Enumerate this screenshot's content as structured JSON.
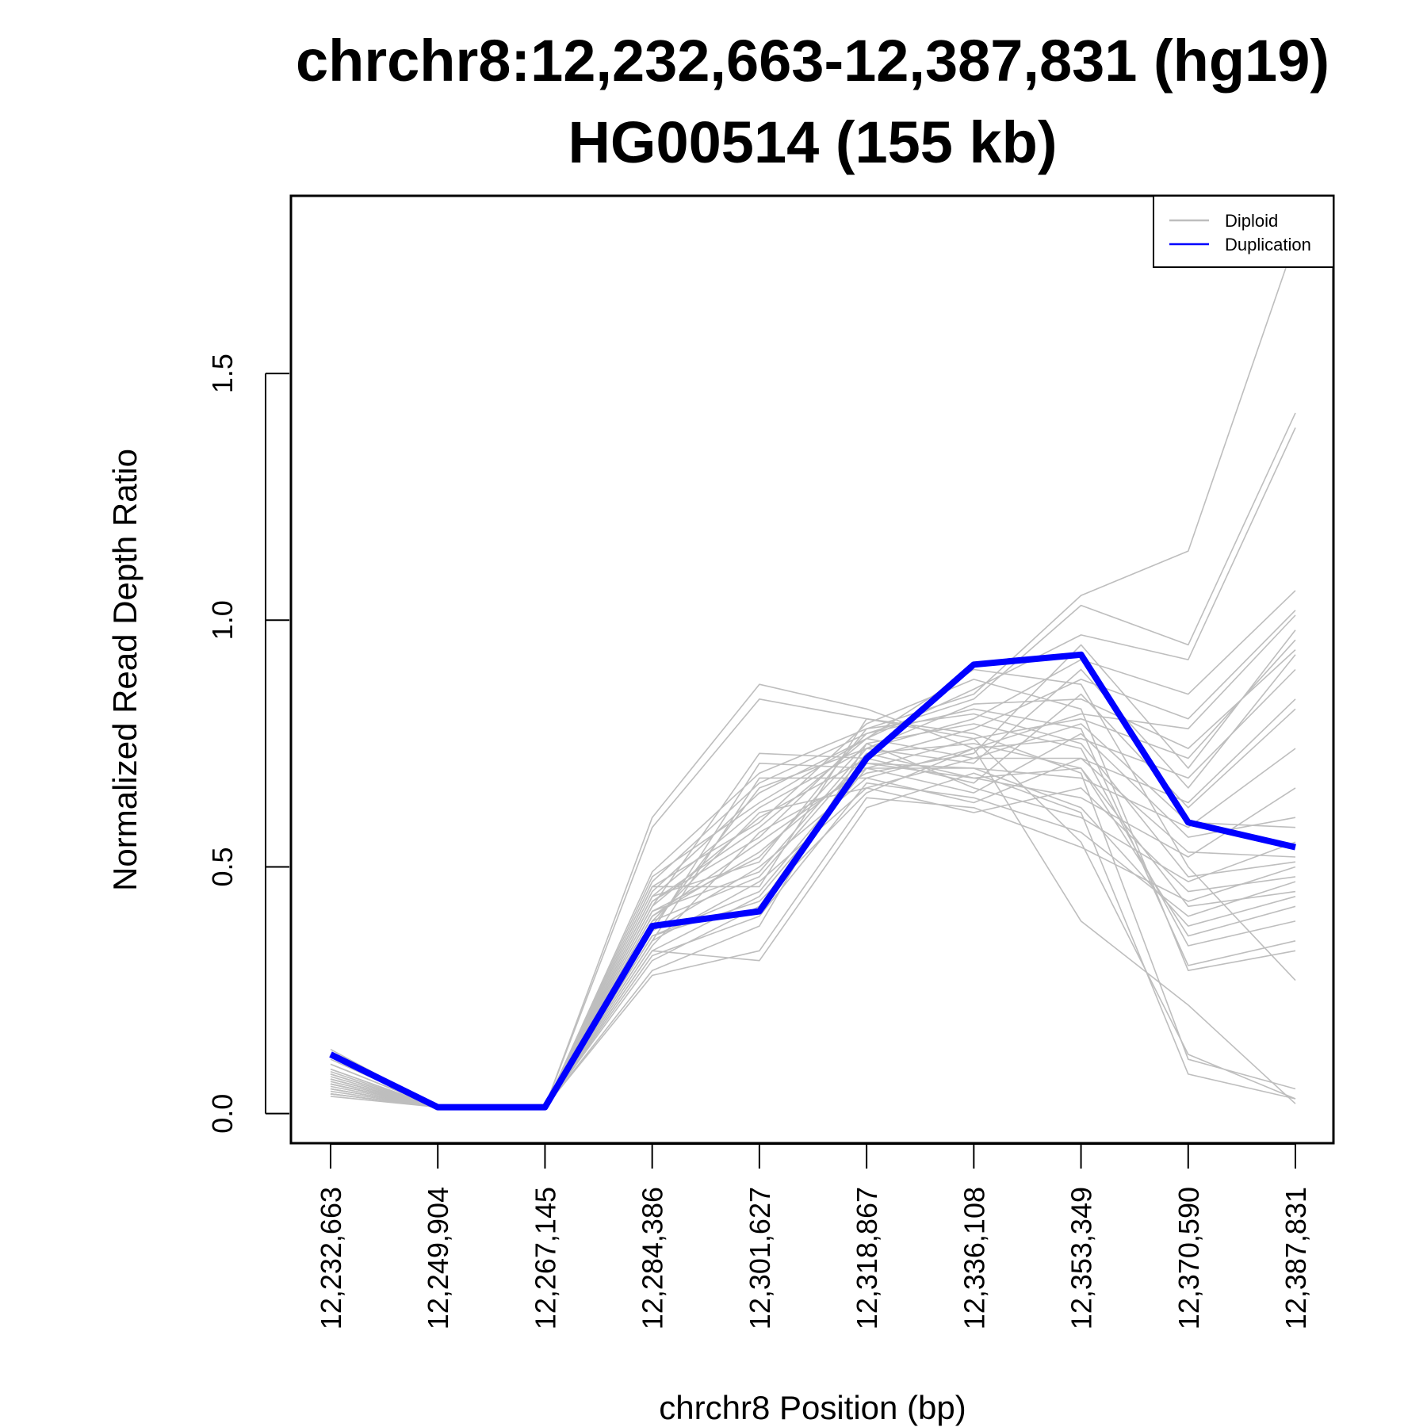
{
  "chart_data": {
    "type": "line",
    "title_line1": "chrchr8:12,232,663-12,387,831 (hg19)",
    "title_line2": "HG00514 (155 kb)",
    "xlabel": "chrchr8 Position (bp)",
    "ylabel": "Normalized Read Depth Ratio",
    "x_ticks": [
      "12,232,663",
      "12,249,904",
      "12,267,145",
      "12,284,386",
      "12,301,627",
      "12,318,867",
      "12,336,108",
      "12,353,349",
      "12,370,590",
      "12,387,831"
    ],
    "y_ticks": [
      "0.0",
      "0.5",
      "1.0",
      "1.5"
    ],
    "y_tick_values": [
      0.0,
      0.5,
      1.0,
      1.5
    ],
    "ylim": [
      -0.06,
      1.86
    ],
    "grid": false,
    "legend_position": "top-right",
    "legend": [
      {
        "label": "Diploid",
        "color": "#bebebe"
      },
      {
        "label": "Duplication",
        "color": "#0000ff"
      }
    ],
    "colors": {
      "diploid": "#bebebe",
      "duplication": "#0000ff",
      "axis": "#000000"
    },
    "series": [
      {
        "name": "Duplication",
        "color": "#0000ff",
        "values": [
          0.12,
          0.013,
          0.013,
          0.38,
          0.41,
          0.72,
          0.91,
          0.93,
          0.59,
          0.54
        ]
      },
      {
        "name": "Diploid",
        "color": "#bebebe",
        "values": [
          0.13,
          0.013,
          0.013,
          0.6,
          0.87,
          0.82,
          0.74,
          0.39,
          0.22,
          0.02
        ]
      },
      {
        "name": "Diploid",
        "color": "#bebebe",
        "values": [
          0.1,
          0.013,
          0.013,
          0.58,
          0.84,
          0.8,
          0.76,
          0.55,
          0.12,
          0.03
        ]
      },
      {
        "name": "Diploid",
        "color": "#bebebe",
        "values": [
          0.09,
          0.013,
          0.013,
          0.49,
          0.69,
          0.78,
          0.85,
          1.05,
          1.14,
          1.77
        ]
      },
      {
        "name": "Diploid",
        "color": "#bebebe",
        "values": [
          0.08,
          0.013,
          0.013,
          0.47,
          0.67,
          0.77,
          0.84,
          1.03,
          0.95,
          1.42
        ]
      },
      {
        "name": "Diploid",
        "color": "#bebebe",
        "values": [
          0.07,
          0.013,
          0.013,
          0.45,
          0.65,
          0.76,
          0.86,
          0.97,
          0.92,
          1.39
        ]
      },
      {
        "name": "Diploid",
        "color": "#bebebe",
        "values": [
          0.06,
          0.013,
          0.013,
          0.44,
          0.62,
          0.74,
          0.8,
          0.92,
          0.85,
          1.06
        ]
      },
      {
        "name": "Diploid",
        "color": "#bebebe",
        "values": [
          0.05,
          0.013,
          0.013,
          0.42,
          0.6,
          0.72,
          0.78,
          0.88,
          0.8,
          1.02
        ]
      },
      {
        "name": "Diploid",
        "color": "#bebebe",
        "values": [
          0.04,
          0.013,
          0.013,
          0.4,
          0.55,
          0.7,
          0.76,
          0.8,
          0.72,
          0.96
        ]
      },
      {
        "name": "Diploid",
        "color": "#bebebe",
        "values": [
          0.035,
          0.013,
          0.013,
          0.37,
          0.5,
          0.68,
          0.74,
          0.76,
          0.68,
          0.9
        ]
      },
      {
        "name": "Diploid",
        "color": "#bebebe",
        "values": [
          0.05,
          0.013,
          0.013,
          0.35,
          0.47,
          0.66,
          0.72,
          0.72,
          0.63,
          0.84
        ]
      },
      {
        "name": "Diploid",
        "color": "#bebebe",
        "values": [
          0.06,
          0.013,
          0.013,
          0.33,
          0.44,
          0.7,
          0.7,
          0.68,
          0.58,
          0.74
        ]
      },
      {
        "name": "Diploid",
        "color": "#bebebe",
        "values": [
          0.07,
          0.013,
          0.013,
          0.31,
          0.42,
          0.73,
          0.68,
          0.64,
          0.52,
          0.66
        ]
      },
      {
        "name": "Diploid",
        "color": "#bebebe",
        "values": [
          0.08,
          0.013,
          0.013,
          0.29,
          0.38,
          0.75,
          0.66,
          0.6,
          0.47,
          0.55
        ]
      },
      {
        "name": "Diploid",
        "color": "#bebebe",
        "values": [
          0.05,
          0.013,
          0.013,
          0.28,
          0.33,
          0.64,
          0.62,
          0.54,
          0.43,
          0.5
        ]
      },
      {
        "name": "Diploid",
        "color": "#bebebe",
        "values": [
          0.04,
          0.013,
          0.013,
          0.32,
          0.4,
          0.67,
          0.64,
          0.57,
          0.4,
          0.47
        ]
      },
      {
        "name": "Diploid",
        "color": "#bebebe",
        "values": [
          0.06,
          0.013,
          0.013,
          0.36,
          0.45,
          0.71,
          0.7,
          0.62,
          0.38,
          0.44
        ]
      },
      {
        "name": "Diploid",
        "color": "#bebebe",
        "values": [
          0.045,
          0.013,
          0.013,
          0.39,
          0.48,
          0.73,
          0.75,
          0.7,
          0.36,
          0.42
        ]
      },
      {
        "name": "Diploid",
        "color": "#bebebe",
        "values": [
          0.055,
          0.013,
          0.013,
          0.41,
          0.52,
          0.75,
          0.79,
          0.74,
          0.34,
          0.39
        ]
      },
      {
        "name": "Diploid",
        "color": "#bebebe",
        "values": [
          0.065,
          0.013,
          0.013,
          0.43,
          0.56,
          0.77,
          0.82,
          0.78,
          0.3,
          0.35
        ]
      },
      {
        "name": "Diploid",
        "color": "#bebebe",
        "values": [
          0.075,
          0.013,
          0.013,
          0.46,
          0.59,
          0.79,
          0.88,
          0.82,
          0.29,
          0.33
        ]
      },
      {
        "name": "Diploid",
        "color": "#bebebe",
        "values": [
          0.085,
          0.013,
          0.013,
          0.48,
          0.63,
          0.76,
          0.9,
          0.87,
          0.5,
          0.27
        ]
      },
      {
        "name": "Diploid",
        "color": "#bebebe",
        "values": [
          0.04,
          0.013,
          0.013,
          0.34,
          0.57,
          0.69,
          0.73,
          0.95,
          0.7,
          0.98
        ]
      },
      {
        "name": "Diploid",
        "color": "#bebebe",
        "values": [
          0.05,
          0.013,
          0.013,
          0.38,
          0.66,
          0.74,
          0.71,
          0.9,
          0.66,
          0.93
        ]
      },
      {
        "name": "Diploid",
        "color": "#bebebe",
        "values": [
          0.06,
          0.013,
          0.013,
          0.42,
          0.73,
          0.72,
          0.67,
          0.85,
          0.62,
          0.82
        ]
      },
      {
        "name": "Diploid",
        "color": "#bebebe",
        "values": [
          0.07,
          0.013,
          0.013,
          0.37,
          0.71,
          0.7,
          0.65,
          0.77,
          0.56,
          0.6
        ]
      },
      {
        "name": "Diploid",
        "color": "#bebebe",
        "values": [
          0.08,
          0.013,
          0.013,
          0.35,
          0.68,
          0.68,
          0.63,
          0.72,
          0.53,
          0.52
        ]
      },
      {
        "name": "Diploid",
        "color": "#bebebe",
        "values": [
          0.09,
          0.013,
          0.013,
          0.39,
          0.61,
          0.66,
          0.61,
          0.66,
          0.45,
          0.48
        ]
      },
      {
        "name": "Diploid",
        "color": "#bebebe",
        "values": [
          0.1,
          0.013,
          0.013,
          0.4,
          0.53,
          0.71,
          0.68,
          0.7,
          0.42,
          0.45
        ]
      },
      {
        "name": "Diploid",
        "color": "#bebebe",
        "values": [
          0.11,
          0.013,
          0.013,
          0.44,
          0.51,
          0.78,
          0.81,
          0.75,
          0.48,
          0.51
        ]
      },
      {
        "name": "Diploid",
        "color": "#bebebe",
        "values": [
          0.12,
          0.013,
          0.013,
          0.46,
          0.46,
          0.8,
          0.77,
          0.69,
          0.11,
          0.05
        ]
      },
      {
        "name": "Diploid",
        "color": "#bebebe",
        "values": [
          0.04,
          0.013,
          0.013,
          0.33,
          0.31,
          0.62,
          0.69,
          0.61,
          0.08,
          0.03
        ]
      },
      {
        "name": "Diploid",
        "color": "#bebebe",
        "values": [
          0.06,
          0.013,
          0.013,
          0.36,
          0.43,
          0.65,
          0.74,
          0.81,
          0.78,
          1.01
        ]
      },
      {
        "name": "Diploid",
        "color": "#bebebe",
        "values": [
          0.05,
          0.013,
          0.013,
          0.41,
          0.49,
          0.74,
          0.83,
          0.84,
          0.74,
          0.94
        ]
      },
      {
        "name": "Diploid",
        "color": "#bebebe",
        "values": [
          0.07,
          0.013,
          0.013,
          0.43,
          0.58,
          0.76,
          0.72,
          0.79,
          0.59,
          0.58
        ]
      }
    ]
  }
}
